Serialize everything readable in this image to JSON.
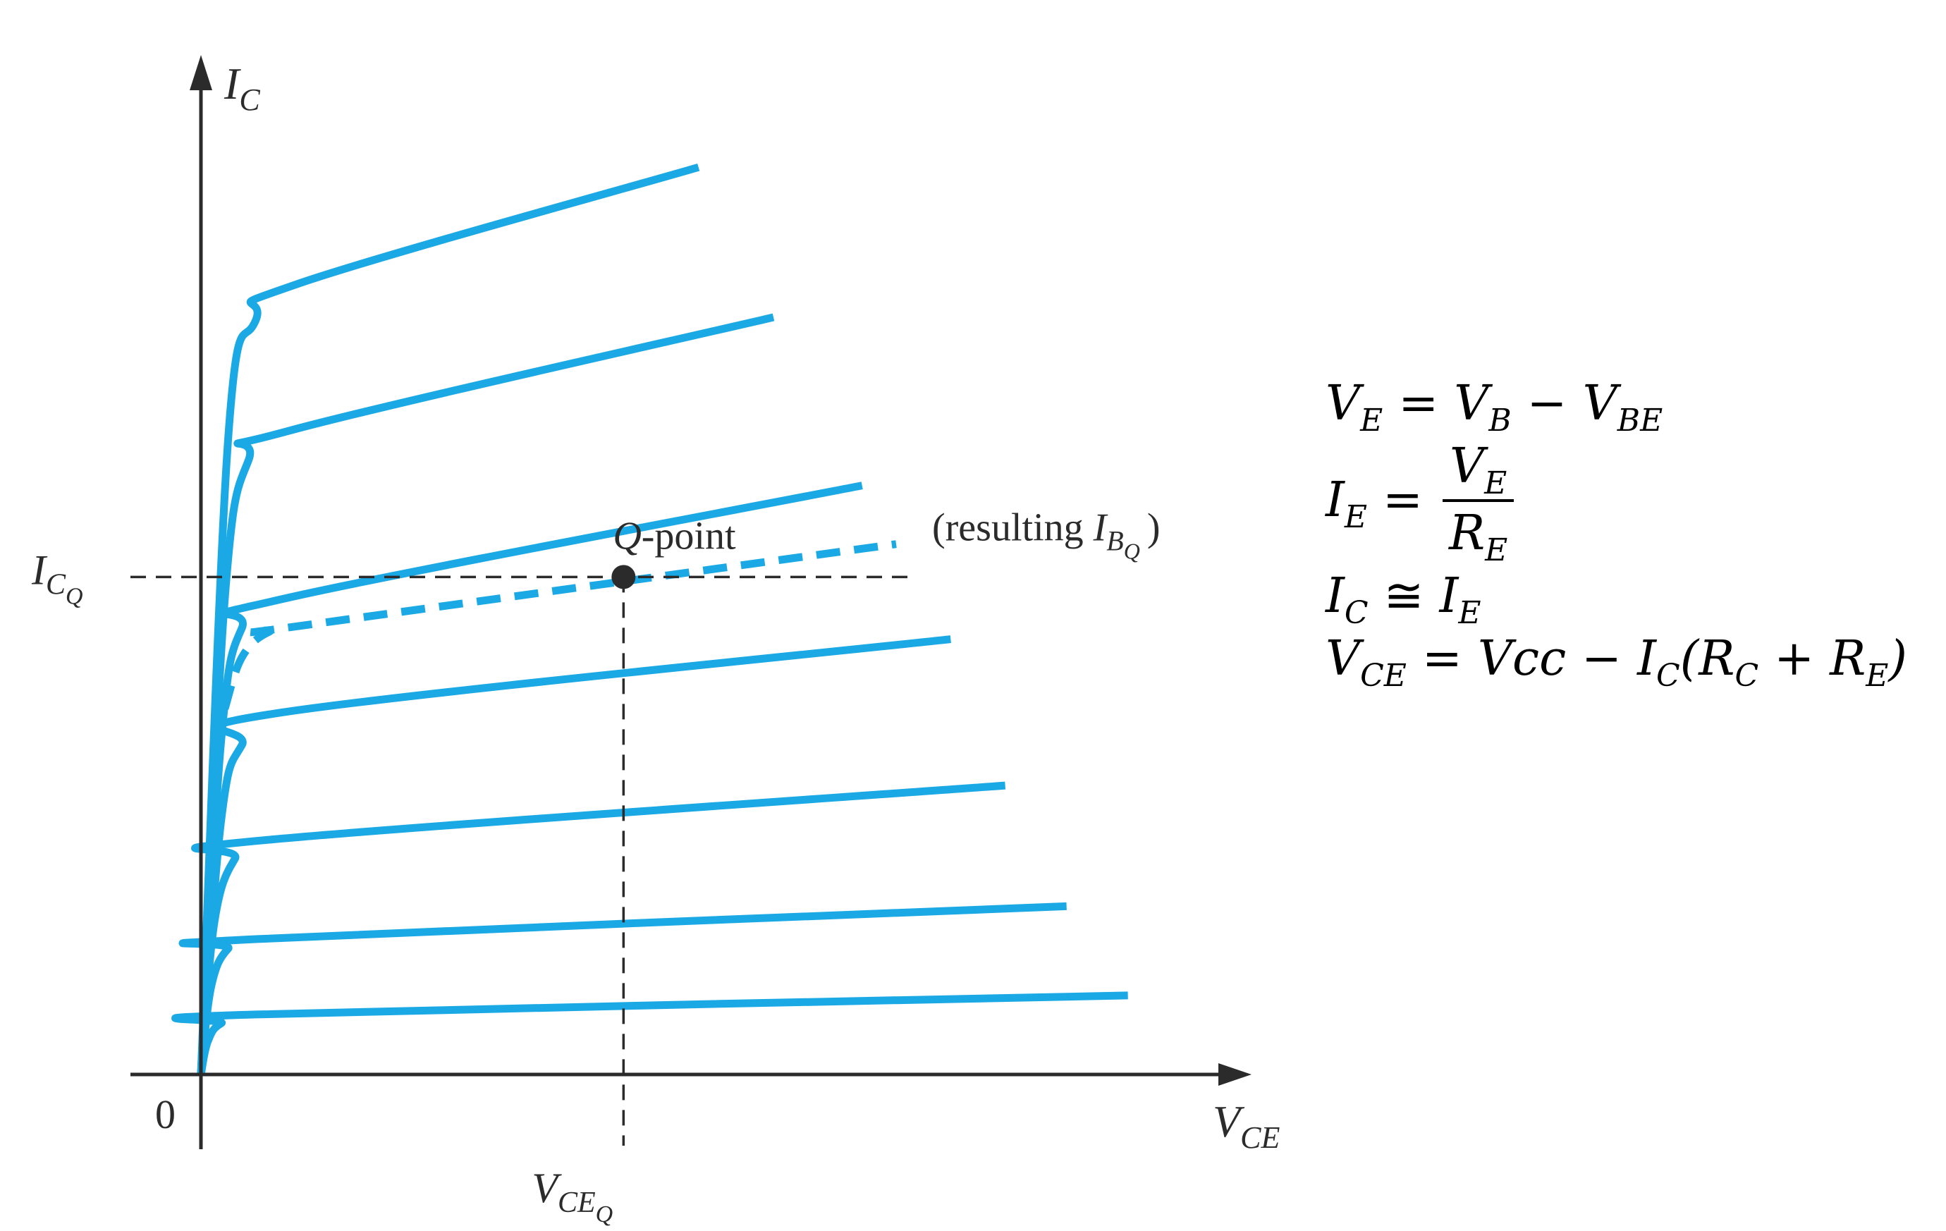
{
  "chart_data": {
    "type": "line",
    "description_axes": {
      "x": {
        "label": "V",
        "label_sub": "CE"
      },
      "y": {
        "label": "I",
        "label_sub": "C"
      }
    },
    "origin_label": "0",
    "xlim": [
      0,
      15
    ],
    "ylim": [
      0,
      13
    ],
    "series": [
      {
        "values": [
          [
            0,
            0
          ],
          [
            0.1,
            0.45
          ],
          [
            0.3,
            0.7
          ],
          [
            0.8,
            0.82
          ],
          [
            13.6,
            1.08
          ]
        ]
      },
      {
        "values": [
          [
            0,
            0
          ],
          [
            0.15,
            1.2
          ],
          [
            0.4,
            1.72
          ],
          [
            0.8,
            1.85
          ],
          [
            12.7,
            2.3
          ]
        ]
      },
      {
        "values": [
          [
            0,
            0
          ],
          [
            0.2,
            2.1
          ],
          [
            0.5,
            2.95
          ],
          [
            0.9,
            3.2
          ],
          [
            11.8,
            3.95
          ]
        ]
      },
      {
        "values": [
          [
            0,
            0
          ],
          [
            0.3,
            3.5
          ],
          [
            0.6,
            4.5
          ],
          [
            1.2,
            4.95
          ],
          [
            11.0,
            5.95
          ]
        ]
      },
      {
        "dashed": true,
        "values": [
          [
            0.35,
            5.0
          ],
          [
            0.6,
            5.7
          ],
          [
            1.0,
            6.05
          ],
          [
            1.6,
            6.15
          ],
          [
            10.2,
            7.25
          ]
        ]
      },
      {
        "values": [
          [
            0,
            0
          ],
          [
            0.3,
            4.6
          ],
          [
            0.6,
            6.1
          ],
          [
            1.2,
            6.5
          ],
          [
            9.7,
            8.05
          ]
        ]
      },
      {
        "values": [
          [
            0,
            0
          ],
          [
            0.35,
            6.5
          ],
          [
            0.7,
            8.4
          ],
          [
            1.3,
            8.8
          ],
          [
            8.4,
            10.35
          ]
        ]
      },
      {
        "values": [
          [
            0,
            0
          ],
          [
            0.4,
            8.7
          ],
          [
            0.8,
            10.3
          ],
          [
            1.4,
            10.8
          ],
          [
            7.3,
            12.4
          ]
        ]
      }
    ],
    "q_point": {
      "x": 6.2,
      "y": 6.8,
      "label_prefix": "Q",
      "label_suffix": "-point",
      "x_label": "V",
      "x_label_sub": "CE",
      "x_label_subsub": "Q",
      "y_label": "I",
      "y_label_sub": "C",
      "y_label_subsub": "Q"
    },
    "dashed_curve_label": {
      "prefix": "(resulting ",
      "symbol": "I",
      "sub": "B",
      "subsub": "Q",
      "suffix": ")"
    },
    "curve_color": "#1aa9e4"
  },
  "equations": [
    {
      "parts": [
        [
          "V",
          "E"
        ],
        [
          "=",
          ""
        ],
        [
          "V",
          "B"
        ],
        [
          "−",
          ""
        ],
        [
          "V",
          "BE"
        ]
      ]
    },
    {
      "lhs": [
        "I",
        "E"
      ],
      "op": "=",
      "num": [
        "V",
        "E"
      ],
      "den": [
        "R",
        "E"
      ]
    },
    {
      "parts": [
        [
          "I",
          "C"
        ],
        [
          "≅",
          ""
        ],
        [
          "I",
          "E"
        ]
      ]
    },
    {
      "parts": [
        [
          "V",
          "CE"
        ],
        [
          "=",
          ""
        ],
        [
          "Vcc",
          ""
        ],
        [
          "−",
          ""
        ],
        [
          "I",
          "C"
        ],
        [
          "(R",
          "C"
        ],
        [
          "+",
          ""
        ],
        [
          "R",
          "E"
        ],
        [
          ")",
          ""
        ]
      ]
    }
  ]
}
